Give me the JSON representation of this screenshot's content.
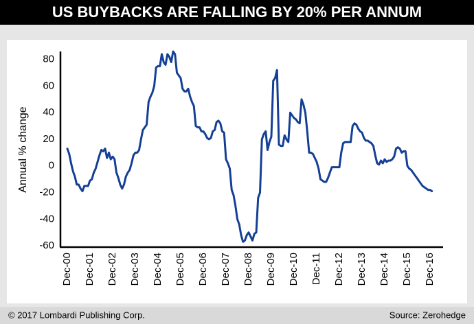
{
  "chart_data": {
    "type": "line",
    "title": "US BUYBACKS ARE FALLING BY 20% PER ANNUM",
    "y_label": "Annual % change",
    "footer_left": "© 2017 Lombardi Publishing Corp.",
    "footer_right": "Source: Zerohedge",
    "color": "#143f94",
    "ylim": [
      -61,
      86
    ],
    "yticks": [
      -60,
      -40,
      -20,
      0,
      20,
      40,
      60,
      80
    ],
    "categories": [
      "Dec-00",
      null,
      null,
      null,
      null,
      null,
      null,
      null,
      null,
      null,
      null,
      null,
      "Dec-01",
      null,
      null,
      null,
      null,
      null,
      null,
      null,
      null,
      null,
      null,
      null,
      "Dec-02",
      null,
      null,
      null,
      null,
      null,
      null,
      null,
      null,
      null,
      null,
      null,
      "Dec-03",
      null,
      null,
      null,
      null,
      null,
      null,
      null,
      null,
      null,
      null,
      null,
      "Dec-04",
      null,
      null,
      null,
      null,
      null,
      null,
      null,
      null,
      null,
      null,
      null,
      "Dec-05",
      null,
      null,
      null,
      null,
      null,
      null,
      null,
      null,
      null,
      null,
      null,
      "Dec-06",
      null,
      null,
      null,
      null,
      null,
      null,
      null,
      null,
      null,
      null,
      null,
      "Dec-07",
      null,
      null,
      null,
      null,
      null,
      null,
      null,
      null,
      null,
      null,
      null,
      "Dec-08",
      null,
      null,
      null,
      null,
      null,
      null,
      null,
      null,
      null,
      null,
      null,
      "Dec-09",
      null,
      null,
      null,
      null,
      null,
      null,
      null,
      null,
      null,
      null,
      null,
      "Dec-10",
      null,
      null,
      null,
      null,
      null,
      null,
      null,
      null,
      null,
      null,
      null,
      "Dec-11",
      null,
      null,
      null,
      null,
      null,
      null,
      null,
      null,
      null,
      null,
      null,
      "Dec-12",
      null,
      null,
      null,
      null,
      null,
      null,
      null,
      null,
      null,
      null,
      null,
      "Dec-13",
      null,
      null,
      null,
      null,
      null,
      null,
      null,
      null,
      null,
      null,
      null,
      "Dec-14",
      null,
      null,
      null,
      null,
      null,
      null,
      null,
      null,
      null,
      null,
      null,
      "Dec-15",
      null,
      null,
      null,
      null,
      null,
      null,
      null,
      null,
      null,
      null,
      null,
      "Dec-16",
      null
    ],
    "values": [
      13,
      9,
      2,
      -4,
      -8,
      -14,
      -14,
      -17,
      -19,
      -15,
      -15,
      -15,
      -11,
      -10,
      -5,
      -2,
      3,
      8,
      12,
      11,
      13,
      6,
      10,
      5,
      7,
      5,
      -5,
      -9,
      -14,
      -17,
      -14,
      -8,
      -5,
      -3,
      2,
      8,
      10,
      10,
      12,
      20,
      27,
      29,
      31,
      48,
      52,
      55,
      60,
      74,
      75,
      75,
      84,
      78,
      76,
      84,
      82,
      78,
      86,
      84,
      70,
      68,
      66,
      58,
      56,
      56,
      58,
      52,
      48,
      45,
      30,
      29,
      29,
      26,
      26,
      24,
      21,
      20,
      21,
      26,
      27,
      33,
      34,
      32,
      26,
      25,
      5,
      2,
      -2,
      -18,
      -22,
      -30,
      -40,
      -44,
      -52,
      -57,
      -56,
      -52,
      -50,
      -53,
      -56,
      -51,
      -50,
      -24,
      -20,
      20,
      24,
      26,
      12,
      18,
      22,
      64,
      66,
      72,
      16,
      15,
      15,
      23,
      20,
      18,
      40,
      38,
      36,
      35,
      33,
      32,
      50,
      46,
      40,
      26,
      10,
      10,
      9,
      6,
      3,
      -2,
      -10,
      -11,
      -12,
      -12,
      -9,
      -5,
      -1,
      -1,
      -1,
      -1,
      -1,
      10,
      17,
      18,
      18,
      18,
      18,
      30,
      32,
      31,
      28,
      26,
      25,
      21,
      19,
      19,
      18,
      17,
      15,
      8,
      2,
      1,
      4,
      2,
      5,
      3,
      4,
      4,
      5,
      7,
      13,
      14,
      13,
      10,
      11,
      11,
      0,
      -2,
      -3,
      -5,
      -7,
      -9,
      -11,
      -13,
      -15,
      -16,
      -17,
      -18,
      -18,
      -19
    ]
  }
}
